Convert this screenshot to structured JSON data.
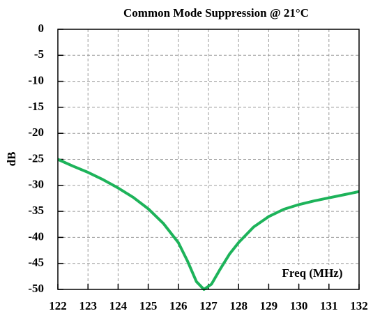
{
  "chart_data": {
    "type": "line",
    "title": "Common Mode Suppression  @ 21°C",
    "y_label": "dB",
    "x_label": "Freq (MHz)",
    "series": [
      {
        "name": "Common Mode Suppression",
        "color": "#1db35a",
        "x": [
          122,
          122.5,
          123,
          123.5,
          124,
          124.5,
          125,
          125.5,
          126,
          126.3,
          126.6,
          126.85,
          127.1,
          127.4,
          127.7,
          128,
          128.5,
          129,
          129.5,
          130,
          130.5,
          131,
          131.5,
          132
        ],
        "values": [
          -25,
          -26.3,
          -27.5,
          -28.9,
          -30.5,
          -32.3,
          -34.5,
          -37.3,
          -41,
          -44.5,
          -48.5,
          -50,
          -49,
          -46,
          -43.2,
          -41,
          -38,
          -36,
          -34.6,
          -33.7,
          -33,
          -32.4,
          -31.8,
          -31.2
        ]
      }
    ],
    "xlim": [
      122,
      132
    ],
    "xticks": [
      122,
      123,
      124,
      125,
      126,
      127,
      128,
      129,
      130,
      131,
      132
    ],
    "ylim": [
      -50,
      0
    ],
    "yticks": [
      0,
      -5,
      -10,
      -15,
      -20,
      -25,
      -30,
      -35,
      -40,
      -45,
      -50
    ],
    "grid": true
  }
}
